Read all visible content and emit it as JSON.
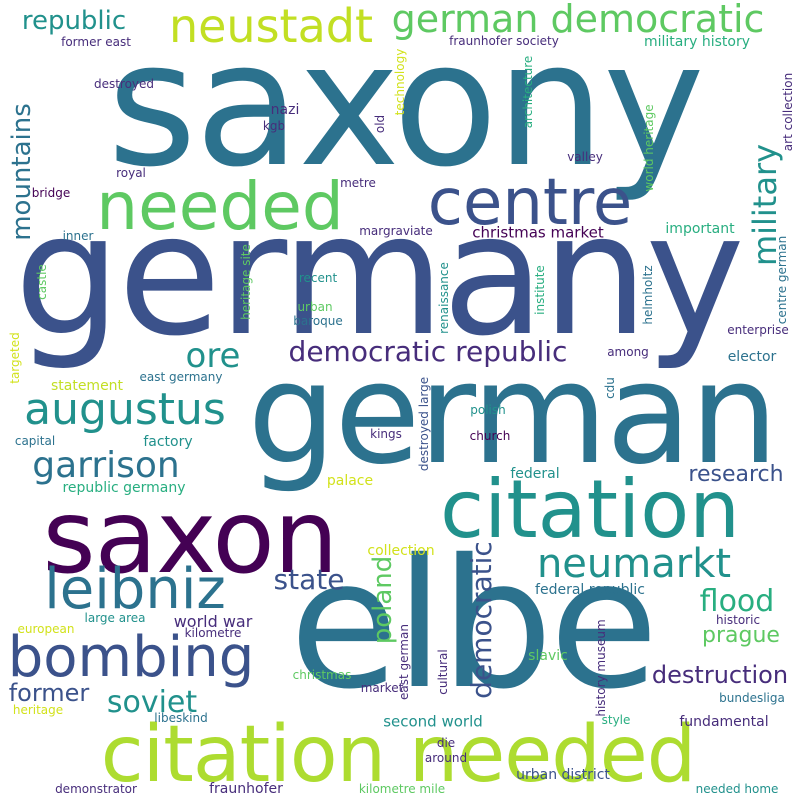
{
  "palette": {
    "dark_purple": "#440154",
    "indigo": "#472d7b",
    "blue_violet": "#3b528b",
    "steel_blue": "#2c728e",
    "teal": "#21918c",
    "sea_green": "#28ae80",
    "green": "#5ec962",
    "lime": "#addc30",
    "yellow": "#fde725"
  },
  "words": [
    {
      "text": "saxony",
      "color": "#2c728e",
      "weight": 1.0
    },
    {
      "text": "germany",
      "color": "#3b528b",
      "weight": 0.98
    },
    {
      "text": "german",
      "color": "#2c728e",
      "weight": 0.82
    },
    {
      "text": "elbe",
      "color": "#2c728e",
      "weight": 0.8
    },
    {
      "text": "saxon",
      "color": "#440154",
      "weight": 0.6
    },
    {
      "text": "citation",
      "color": "#21918c",
      "weight": 0.58
    },
    {
      "text": "citation needed",
      "color": "#addc30",
      "weight": 0.5
    },
    {
      "text": "needed",
      "color": "#5ec962",
      "weight": 0.48
    },
    {
      "text": "centre",
      "color": "#3b528b",
      "weight": 0.4
    },
    {
      "text": "bombing",
      "color": "#3b528b",
      "weight": 0.36
    },
    {
      "text": "leibniz",
      "color": "#2c728e",
      "weight": 0.36
    },
    {
      "text": "neustadt",
      "color": "#c2df23",
      "weight": 0.3
    },
    {
      "text": "german democratic",
      "color": "#5ec962",
      "weight": 0.28
    },
    {
      "text": "augustus",
      "color": "#21918c",
      "weight": 0.28
    },
    {
      "text": "neumarkt",
      "color": "#21918c",
      "weight": 0.26
    },
    {
      "text": "garrison",
      "color": "#2c728e",
      "weight": 0.24
    },
    {
      "text": "democratic republic",
      "color": "#472d7b",
      "weight": 0.2
    },
    {
      "text": "ore",
      "color": "#21918c",
      "weight": 0.22
    },
    {
      "text": "military",
      "color": "#21918c",
      "weight": 0.2
    },
    {
      "text": "republic",
      "color": "#21918c",
      "weight": 0.18
    },
    {
      "text": "mountains",
      "color": "#2c728e",
      "weight": 0.18
    },
    {
      "text": "state",
      "color": "#3b528b",
      "weight": 0.18
    },
    {
      "text": "soviet",
      "color": "#21918c",
      "weight": 0.18
    },
    {
      "text": "flood",
      "color": "#28ae80",
      "weight": 0.18
    },
    {
      "text": "democratic",
      "color": "#3b528b",
      "weight": 0.18
    },
    {
      "text": "poland",
      "color": "#5ec962",
      "weight": 0.16
    },
    {
      "text": "former",
      "color": "#3b528b",
      "weight": 0.16
    },
    {
      "text": "destruction",
      "color": "#472d7b",
      "weight": 0.16
    },
    {
      "text": "research",
      "color": "#3b528b",
      "weight": 0.16
    },
    {
      "text": "prague",
      "color": "#5ec962",
      "weight": 0.14
    },
    {
      "text": "second world",
      "color": "#21918c",
      "weight": 0.1
    },
    {
      "text": "world war",
      "color": "#472d7b",
      "weight": 0.1
    },
    {
      "text": "christmas market",
      "color": "#440154",
      "weight": 0.1
    },
    {
      "text": "military history",
      "color": "#28ae80",
      "weight": 0.1
    },
    {
      "text": "fraunhofer",
      "color": "#472d7b",
      "weight": 0.1
    },
    {
      "text": "fraunhofer society",
      "color": "#472d7b",
      "weight": 0.08
    },
    {
      "text": "former east",
      "color": "#472d7b",
      "weight": 0.08
    },
    {
      "text": "destroyed",
      "color": "#472d7b",
      "weight": 0.08
    },
    {
      "text": "nazi",
      "color": "#472d7b",
      "weight": 0.08
    },
    {
      "text": "kgb",
      "color": "#472d7b",
      "weight": 0.08
    },
    {
      "text": "old",
      "color": "#472d7b",
      "weight": 0.08
    },
    {
      "text": "technology",
      "color": "#d2e21b",
      "weight": 0.08
    },
    {
      "text": "architecture",
      "color": "#28ae80",
      "weight": 0.08
    },
    {
      "text": "world heritage",
      "color": "#5ec962",
      "weight": 0.08
    },
    {
      "text": "art collection",
      "color": "#472d7b",
      "weight": 0.08
    },
    {
      "text": "valley",
      "color": "#472d7b",
      "weight": 0.08
    },
    {
      "text": "royal",
      "color": "#472d7b",
      "weight": 0.08
    },
    {
      "text": "bridge",
      "color": "#440154",
      "weight": 0.08
    },
    {
      "text": "metre",
      "color": "#472d7b",
      "weight": 0.08
    },
    {
      "text": "inner",
      "color": "#2c728e",
      "weight": 0.08
    },
    {
      "text": "margraviate",
      "color": "#472d7b",
      "weight": 0.08
    },
    {
      "text": "important",
      "color": "#28ae80",
      "weight": 0.08
    },
    {
      "text": "castle",
      "color": "#5ec962",
      "weight": 0.08
    },
    {
      "text": "heritage site",
      "color": "#5ec962",
      "weight": 0.08
    },
    {
      "text": "recent",
      "color": "#21918c",
      "weight": 0.08
    },
    {
      "text": "renaissance",
      "color": "#21918c",
      "weight": 0.08
    },
    {
      "text": "institute",
      "color": "#28ae80",
      "weight": 0.08
    },
    {
      "text": "helmholtz",
      "color": "#2c728e",
      "weight": 0.08
    },
    {
      "text": "centre german",
      "color": "#2c728e",
      "weight": 0.08
    },
    {
      "text": "urban",
      "color": "#5ec962",
      "weight": 0.08
    },
    {
      "text": "baroque",
      "color": "#2c728e",
      "weight": 0.08
    },
    {
      "text": "enterprise",
      "color": "#472d7b",
      "weight": 0.08
    },
    {
      "text": "targeted",
      "color": "#d2e21b",
      "weight": 0.08
    },
    {
      "text": "among",
      "color": "#472d7b",
      "weight": 0.08
    },
    {
      "text": "elector",
      "color": "#2c728e",
      "weight": 0.08
    },
    {
      "text": "statement",
      "color": "#c2df23",
      "weight": 0.08
    },
    {
      "text": "east germany",
      "color": "#2c728e",
      "weight": 0.08
    },
    {
      "text": "destroyed large",
      "color": "#3b528b",
      "weight": 0.08
    },
    {
      "text": "cdu",
      "color": "#2c728e",
      "weight": 0.08
    },
    {
      "text": "polish",
      "color": "#21918c",
      "weight": 0.08
    },
    {
      "text": "capital",
      "color": "#2c728e",
      "weight": 0.08
    },
    {
      "text": "factory",
      "color": "#21918c",
      "weight": 0.08
    },
    {
      "text": "kings",
      "color": "#472d7b",
      "weight": 0.08
    },
    {
      "text": "church",
      "color": "#440154",
      "weight": 0.08
    },
    {
      "text": "federal",
      "color": "#21918c",
      "weight": 0.08
    },
    {
      "text": "republic germany",
      "color": "#28ae80",
      "weight": 0.08
    },
    {
      "text": "palace",
      "color": "#d2e21b",
      "weight": 0.08
    },
    {
      "text": "collection",
      "color": "#d2e21b",
      "weight": 0.08
    },
    {
      "text": "federal republic",
      "color": "#2c728e",
      "weight": 0.08
    },
    {
      "text": "east german",
      "color": "#472d7b",
      "weight": 0.08
    },
    {
      "text": "cultural",
      "color": "#472d7b",
      "weight": 0.08
    },
    {
      "text": "history museum",
      "color": "#472d7b",
      "weight": 0.08
    },
    {
      "text": "european",
      "color": "#d2e21b",
      "weight": 0.08
    },
    {
      "text": "large area",
      "color": "#21918c",
      "weight": 0.08
    },
    {
      "text": "kilometre",
      "color": "#472d7b",
      "weight": 0.08
    },
    {
      "text": "historic",
      "color": "#472d7b",
      "weight": 0.08
    },
    {
      "text": "slavic",
      "color": "#5ec962",
      "weight": 0.08
    },
    {
      "text": "christmas",
      "color": "#5ec962",
      "weight": 0.08
    },
    {
      "text": "market",
      "color": "#472d7b",
      "weight": 0.08
    },
    {
      "text": "bundesliga",
      "color": "#2c728e",
      "weight": 0.08
    },
    {
      "text": "heritage",
      "color": "#d2e21b",
      "weight": 0.08
    },
    {
      "text": "libeskind",
      "color": "#2c728e",
      "weight": 0.08
    },
    {
      "text": "style",
      "color": "#28ae80",
      "weight": 0.08
    },
    {
      "text": "fundamental",
      "color": "#472d7b",
      "weight": 0.08
    },
    {
      "text": "die",
      "color": "#472d7b",
      "weight": 0.08
    },
    {
      "text": "around",
      "color": "#472d7b",
      "weight": 0.08
    },
    {
      "text": "urban district",
      "color": "#3b528b",
      "weight": 0.08
    },
    {
      "text": "demonstrator",
      "color": "#472d7b",
      "weight": 0.08
    },
    {
      "text": "kilometre mile",
      "color": "#5ec962",
      "weight": 0.08
    },
    {
      "text": "needed home",
      "color": "#21918c",
      "weight": 0.08
    }
  ]
}
